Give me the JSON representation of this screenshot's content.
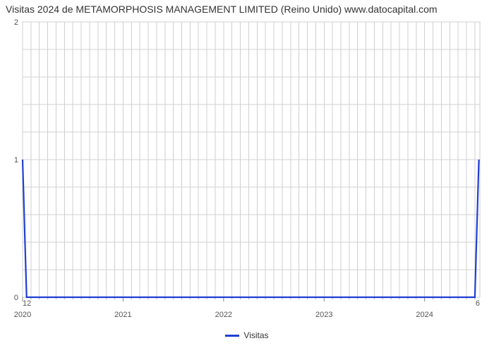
{
  "title": "Visitas 2024 de METAMORPHOSIS MANAGEMENT LIMITED (Reino Unido) www.datocapital.com",
  "chart": {
    "type": "line",
    "background_color": "#ffffff",
    "grid_color": "#d0d0d0",
    "border_color": "#cccccc",
    "title_fontsize": 14,
    "axis_label_fontsize": 11,
    "ylim": [
      0,
      2
    ],
    "yticks_major": [
      0,
      1,
      2
    ],
    "yticks_minor_count_between": 4,
    "xlim": [
      2020,
      2024.55
    ],
    "xticks_major": [
      2020,
      2021,
      2022,
      2023,
      2024
    ],
    "xticks_major_labels": [
      "2020",
      "2021",
      "2022",
      "2023",
      "2024"
    ],
    "minor_ticks_per_x_interval": 12,
    "series": {
      "name": "Visitas",
      "color": "#1f3fd4",
      "line_width": 2.2,
      "x": [
        2020.0,
        2020.04,
        2020.917,
        2024.46,
        2024.5,
        2024.54
      ],
      "y": [
        1,
        0,
        0,
        0,
        0,
        1
      ]
    },
    "left_secondary_label": "12",
    "right_secondary_label": "6"
  },
  "legend_label": "Visitas"
}
